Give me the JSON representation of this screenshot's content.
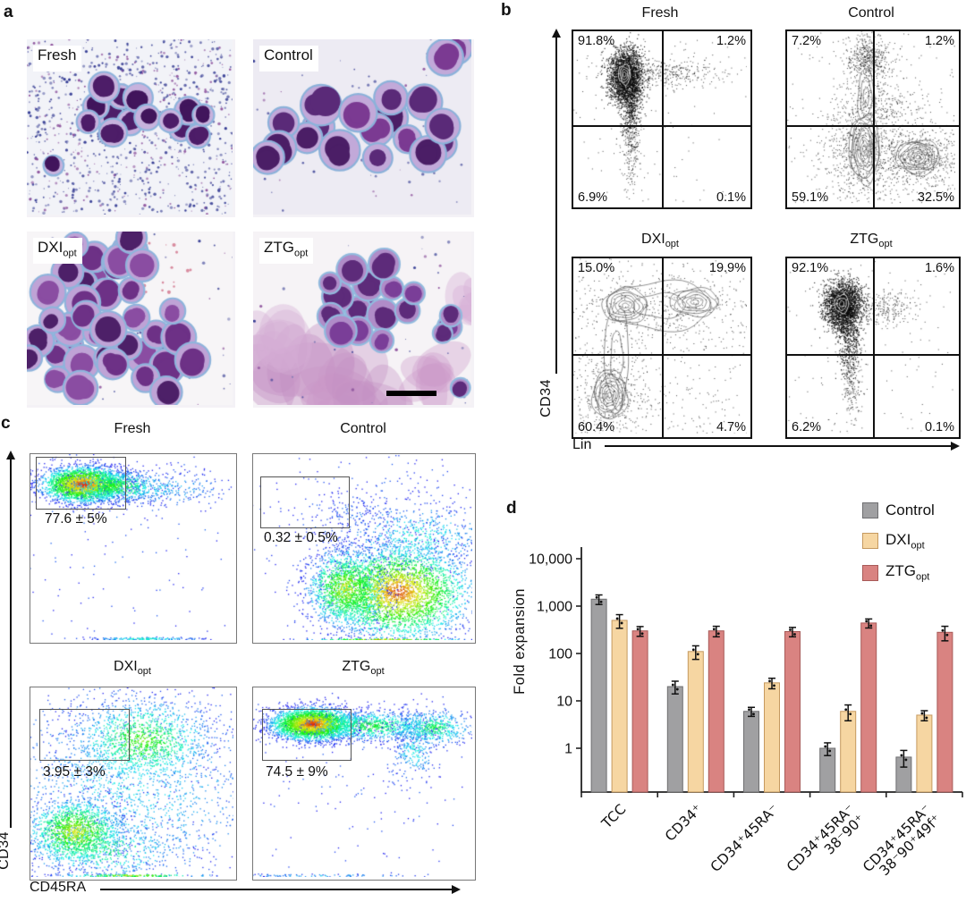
{
  "panels": {
    "a": {
      "label": "a",
      "images": [
        {
          "name": "Fresh",
          "sub": ""
        },
        {
          "name": "Control",
          "sub": ""
        },
        {
          "name": "DXI",
          "sub": "opt"
        },
        {
          "name": "ZTG",
          "sub": "opt"
        }
      ]
    },
    "b": {
      "label": "b",
      "x_axis": "Lin",
      "y_axis": "CD34",
      "plots": [
        {
          "title": "Fresh",
          "sub": "",
          "quadrants": {
            "top_left": "91.8%",
            "top_right": "1.2%",
            "bottom_left": "6.9%",
            "bottom_right": "0.1%"
          }
        },
        {
          "title": "Control",
          "sub": "",
          "quadrants": {
            "top_left": "7.2%",
            "top_right": "1.2%",
            "bottom_left": "59.1%",
            "bottom_right": "32.5%"
          }
        },
        {
          "title": "DXI",
          "sub": "opt",
          "quadrants": {
            "top_left": "15.0%",
            "top_right": "19.9%",
            "bottom_left": "60.4%",
            "bottom_right": "4.7%"
          }
        },
        {
          "title": "ZTG",
          "sub": "opt",
          "quadrants": {
            "top_left": "92.1%",
            "top_right": "1.6%",
            "bottom_left": "6.2%",
            "bottom_right": "0.1%"
          }
        }
      ]
    },
    "c": {
      "label": "c",
      "x_axis": "CD45RA",
      "y_axis": "CD34",
      "plots": [
        {
          "title": "Fresh",
          "sub": "",
          "gate_label": "77.6 ± 5%"
        },
        {
          "title": "Control",
          "sub": "",
          "gate_label": "0.32 ± 0.5%"
        },
        {
          "title": "DXI",
          "sub": "opt",
          "gate_label": "3.95 ± 3%"
        },
        {
          "title": "ZTG",
          "sub": "opt",
          "gate_label": "74.5 ± 9%"
        }
      ]
    },
    "d": {
      "label": "d"
    }
  },
  "chart_data": {
    "type": "bar",
    "ylabel": "Fold expansion",
    "log_scale": true,
    "ylim": [
      0.12,
      10000
    ],
    "yticks": [
      1,
      10,
      100,
      1000,
      10000
    ],
    "ytick_labels": [
      "1",
      "10",
      "100",
      "1,000",
      "10,000"
    ],
    "categories": [
      "TCC",
      "CD34⁺",
      "CD34⁺45RA⁻",
      "CD34⁺45RA⁻|38⁻90⁺",
      "CD34⁺45RA⁻|38⁻90⁺49f⁺"
    ],
    "legend_position": "top-right",
    "grid": false,
    "series": [
      {
        "name": "Control",
        "sub": "",
        "color": "#a0a0a2",
        "edge": "#6f6f71",
        "values": [
          1400,
          20,
          6,
          1,
          0.65
        ],
        "errors": [
          320,
          6,
          1.3,
          0.3,
          0.25
        ]
      },
      {
        "name": "DXI",
        "sub": "opt",
        "color": "#f6d6a2",
        "edge": "#c5995f",
        "values": [
          500,
          110,
          24,
          6,
          5
        ],
        "errors": [
          160,
          35,
          6,
          2.2,
          1.2
        ]
      },
      {
        "name": "ZTG",
        "sub": "opt",
        "color": "#d98381",
        "edge": "#a85a58",
        "values": [
          300,
          300,
          290,
          440,
          280
        ],
        "errors": [
          70,
          75,
          65,
          95,
          95
        ]
      }
    ]
  }
}
